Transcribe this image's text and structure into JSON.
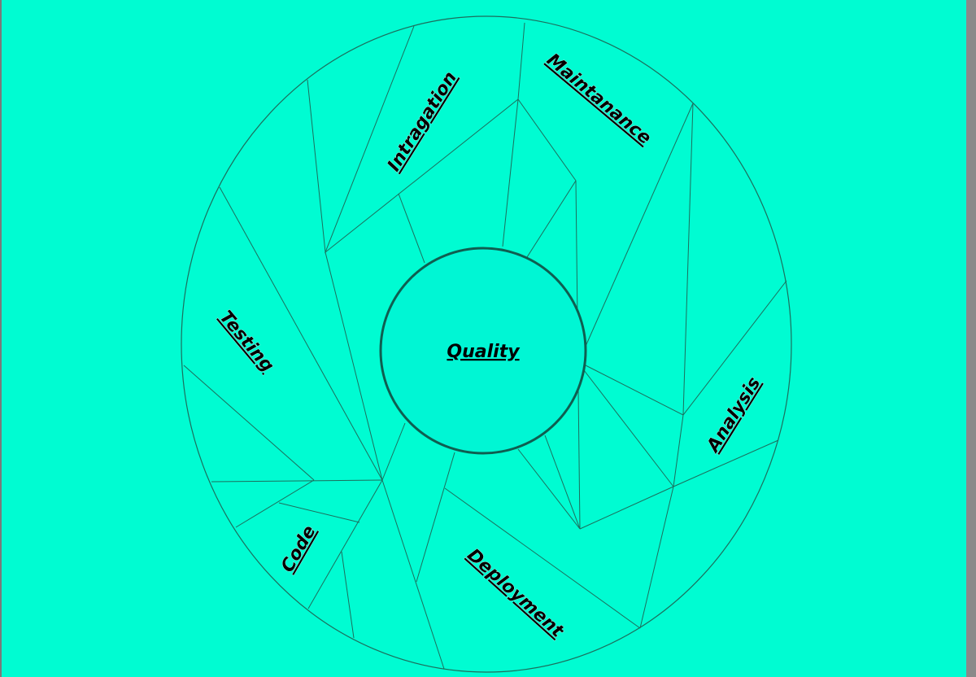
{
  "diagram": {
    "center_label": "Quality",
    "sections": [
      {
        "key": "integration",
        "label": "Intragation"
      },
      {
        "key": "maintenance",
        "label": "Maintanance"
      },
      {
        "key": "testing",
        "label": "Testing"
      },
      {
        "key": "analysis",
        "label": "Analysis"
      },
      {
        "key": "code",
        "label": "Code"
      },
      {
        "key": "deployment",
        "label": "Deployment"
      }
    ]
  },
  "colors": {
    "background": "#00fcd2",
    "lines": "#1c6e5c",
    "text": "#000000"
  }
}
